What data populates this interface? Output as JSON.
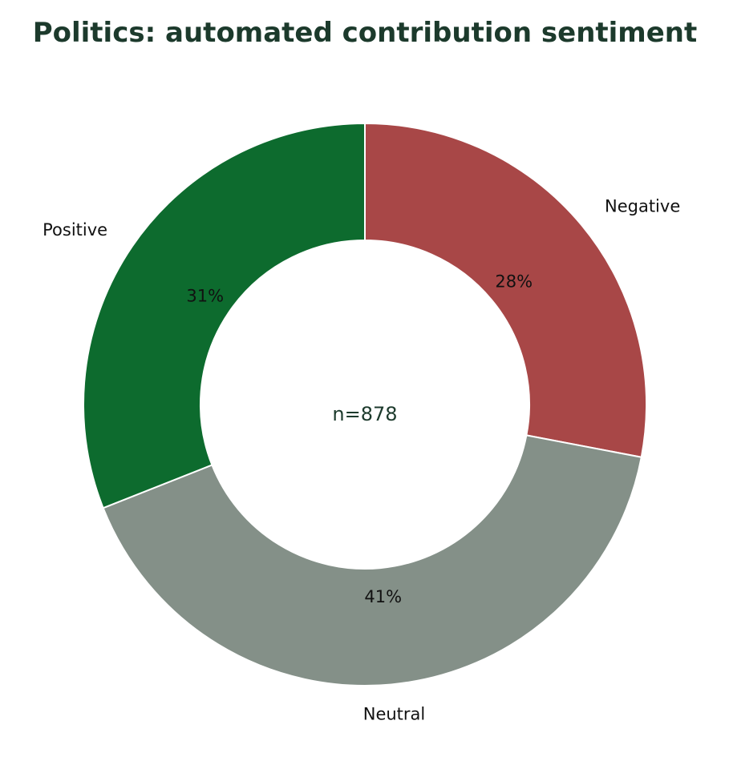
{
  "chart_data": {
    "type": "pie",
    "style": "donut",
    "title": "Politics: automated contribution sentiment",
    "center_label": "n=878",
    "start_angle_deg": 90,
    "direction": "clockwise",
    "slices": [
      {
        "label": "Negative",
        "value": 28,
        "value_label": "28%",
        "color": "#a84747"
      },
      {
        "label": "Neutral",
        "value": 41,
        "value_label": "41%",
        "color": "#849088"
      },
      {
        "label": "Positive",
        "value": 31,
        "value_label": "31%",
        "color": "#0d6b2e"
      }
    ],
    "legend": false
  }
}
